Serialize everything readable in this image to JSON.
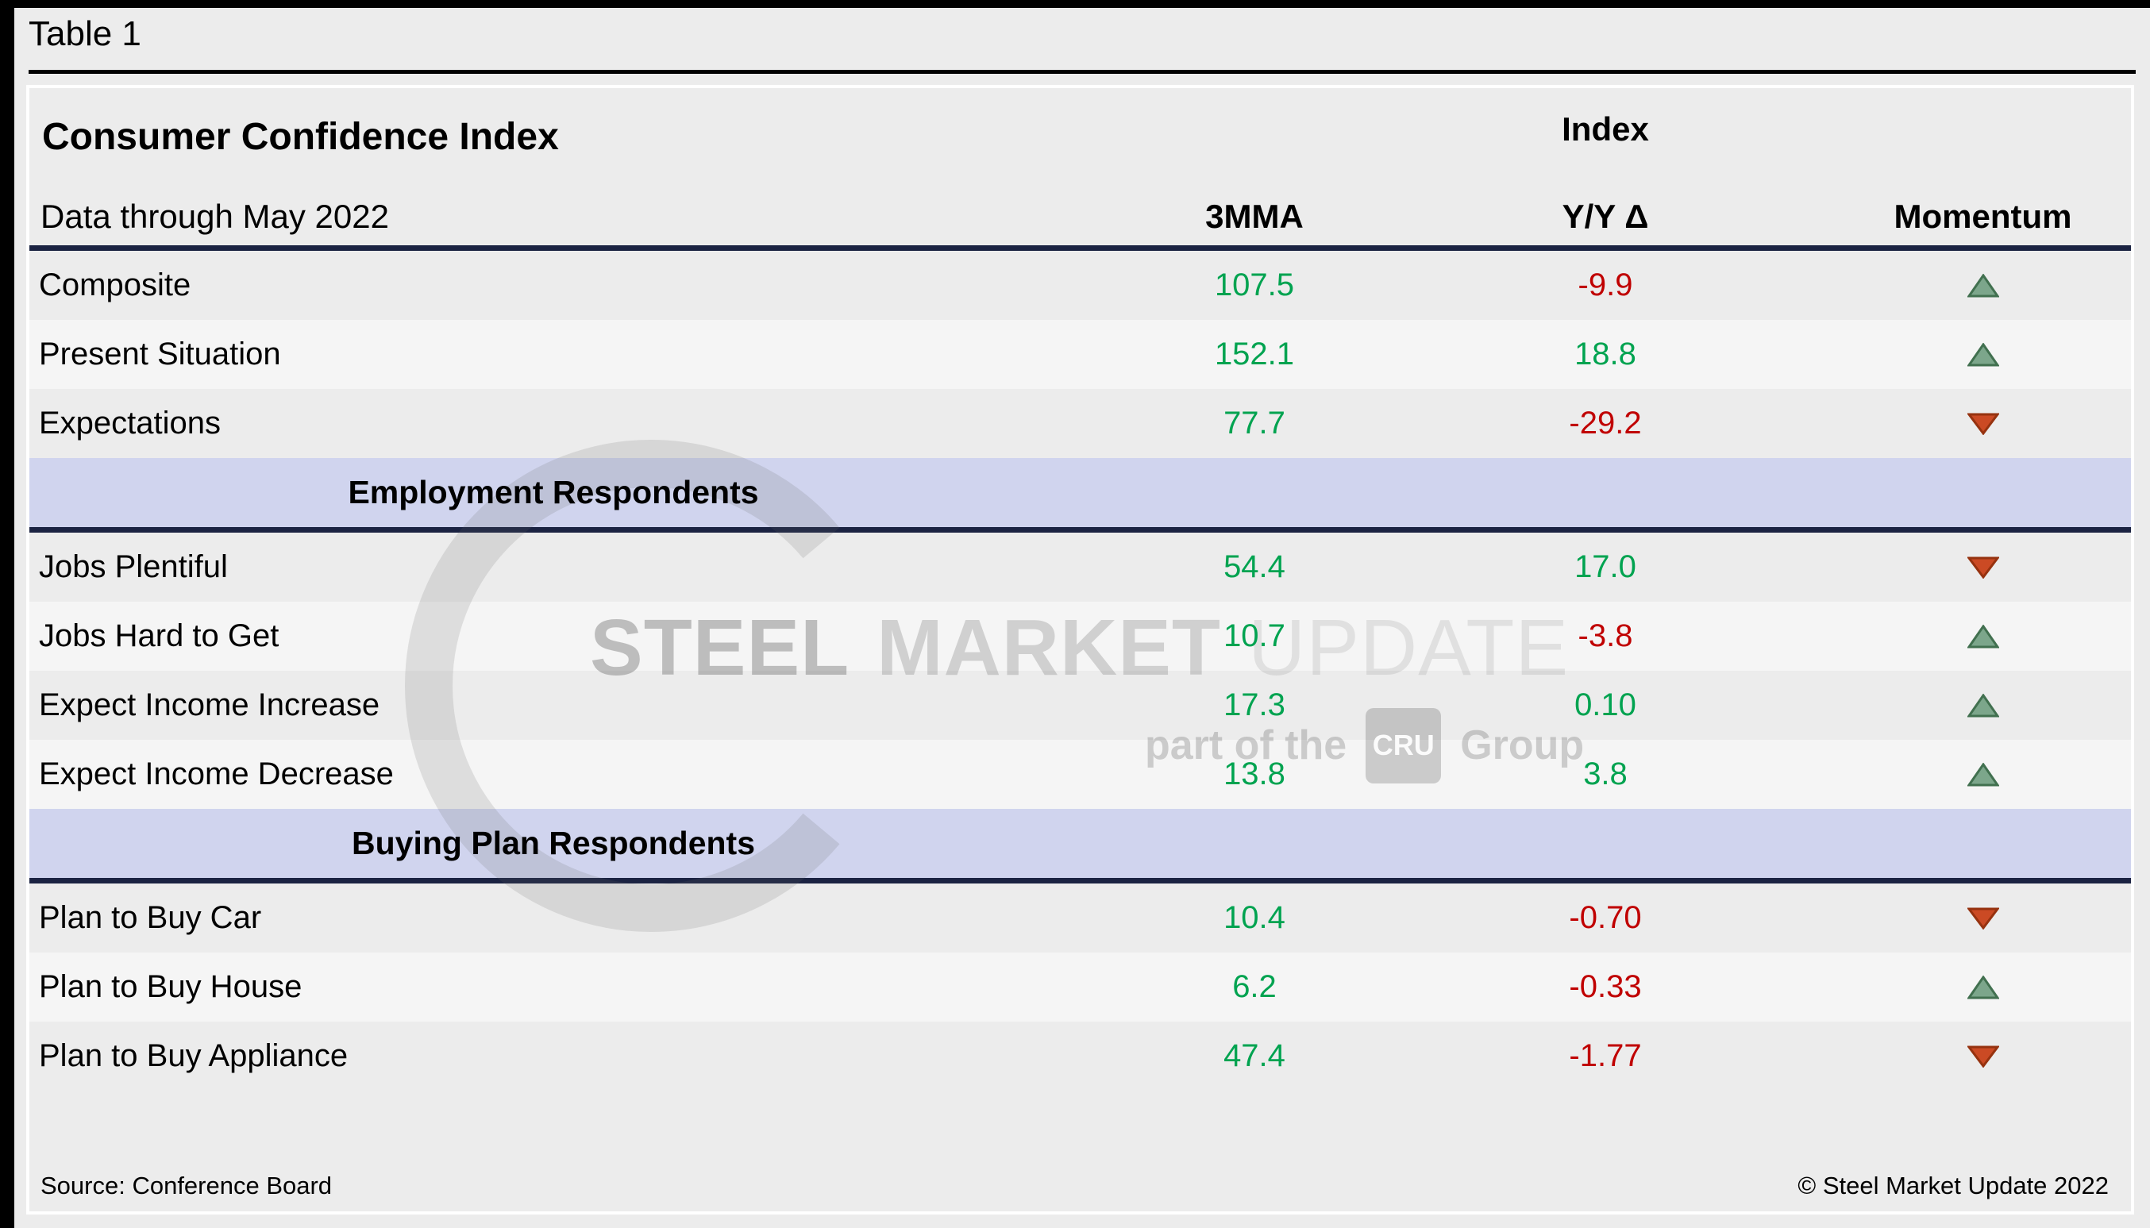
{
  "page": {
    "tag": "Table 1"
  },
  "chart_data": {
    "type": "table",
    "title": "Consumer Confidence Index",
    "subtitle": "Data through May 2022",
    "column_group": "Index",
    "columns": [
      "3MMA",
      "Y/Y Δ",
      "Momentum"
    ],
    "sections": [
      {
        "header": null,
        "rows": [
          {
            "label": "Composite",
            "mma": "107.5",
            "yoy": "-9.9",
            "yoy_color": "red",
            "momentum": "up"
          },
          {
            "label": "Present Situation",
            "mma": "152.1",
            "yoy": "18.8",
            "yoy_color": "green",
            "momentum": "up"
          },
          {
            "label": "Expectations",
            "mma": "77.7",
            "yoy": "-29.2",
            "yoy_color": "red",
            "momentum": "down"
          }
        ]
      },
      {
        "header": "Employment Respondents",
        "rows": [
          {
            "label": "Jobs Plentiful",
            "mma": "54.4",
            "yoy": "17.0",
            "yoy_color": "green",
            "momentum": "down"
          },
          {
            "label": "Jobs Hard to Get",
            "mma": "10.7",
            "yoy": "-3.8",
            "yoy_color": "red",
            "momentum": "up"
          },
          {
            "label": "Expect Income Increase",
            "mma": "17.3",
            "yoy": "0.10",
            "yoy_color": "green",
            "momentum": "up"
          },
          {
            "label": "Expect Income Decrease",
            "mma": "13.8",
            "yoy": "3.8",
            "yoy_color": "green",
            "momentum": "up"
          }
        ]
      },
      {
        "header": "Buying Plan Respondents",
        "rows": [
          {
            "label": "Plan to Buy Car",
            "mma": "10.4",
            "yoy": "-0.70",
            "yoy_color": "red",
            "momentum": "down"
          },
          {
            "label": "Plan to Buy House",
            "mma": "6.2",
            "yoy": "-0.33",
            "yoy_color": "red",
            "momentum": "up"
          },
          {
            "label": "Plan to Buy Appliance",
            "mma": "47.4",
            "yoy": "-1.77",
            "yoy_color": "red",
            "momentum": "down"
          }
        ]
      }
    ]
  },
  "footer": {
    "source": "Source: Conference Board",
    "copyright": "© Steel Market Update 2022"
  },
  "watermark": {
    "word1": "STEEL",
    "word2": "MARKET",
    "word3": "UPDATE",
    "part_of_the": "part of the",
    "cru": "CRU",
    "group": "Group"
  },
  "colors": {
    "positive": "#00a350",
    "negative": "#c00000",
    "up_triangle_fill": "#7ca68b",
    "up_triangle_stroke": "#41704f",
    "down_triangle_fill": "#cb4a24",
    "down_triangle_stroke": "#96320f",
    "section_band": "#d0d4ee",
    "rule_navy": "#1b2342",
    "stripe_light": "#f5f5f5",
    "stripe_dark": "#ececec"
  }
}
